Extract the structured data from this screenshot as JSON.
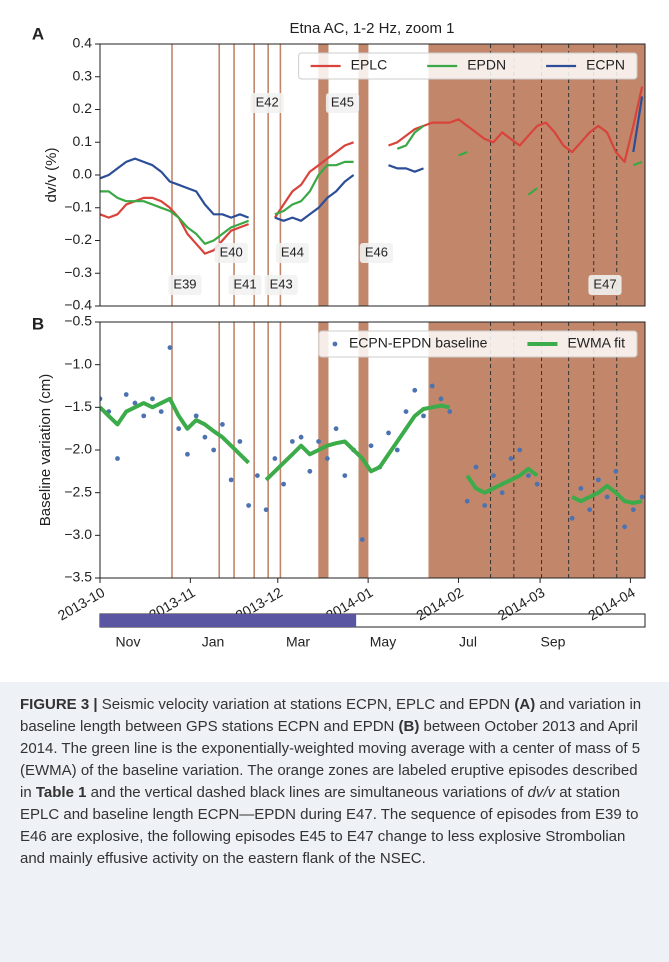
{
  "chart_data": [
    {
      "type": "line",
      "title": "Etna AC, 1-2 Hz, zoom 1",
      "panel_label": "A",
      "y_label": "dv/v (%)",
      "x": [
        0,
        3,
        6,
        9,
        12,
        15,
        18,
        21,
        24,
        27,
        30,
        33,
        36,
        39,
        42,
        45,
        48,
        51,
        54,
        57,
        60,
        63,
        66,
        69,
        72,
        75,
        78,
        81,
        84,
        87,
        90,
        93,
        96,
        99,
        102,
        105,
        108,
        111,
        114,
        117,
        120,
        123,
        126,
        129,
        132,
        135,
        138,
        141,
        144,
        147,
        150,
        153,
        156,
        159,
        162,
        165,
        168,
        171,
        174,
        177,
        180,
        183,
        186
      ],
      "xlim": [
        0,
        187
      ],
      "ylim": [
        -0.4,
        0.4
      ],
      "yticks": [
        0.4,
        0.3,
        0.2,
        0.1,
        {
          "value": 0,
          "label": "0.0"
        },
        {
          "value": -0.1,
          "label": "−0.1"
        },
        {
          "value": -0.2,
          "label": "−0.2"
        },
        {
          "value": -0.3,
          "label": "−0.3"
        },
        {
          "value": -0.4,
          "label": "−0.4"
        }
      ],
      "legend": "upper right",
      "series": [
        {
          "name": "EPLC",
          "color": "#d8433b",
          "mode": "line",
          "values": [
            -0.12,
            -0.13,
            -0.12,
            -0.09,
            -0.08,
            -0.07,
            -0.07,
            -0.08,
            -0.1,
            -0.13,
            -0.18,
            -0.21,
            -0.24,
            -0.23,
            -0.2,
            -0.17,
            -0.16,
            -0.15,
            null,
            null,
            -0.13,
            -0.09,
            -0.05,
            -0.03,
            0.01,
            0.03,
            0.05,
            0.07,
            0.09,
            0.1,
            null,
            null,
            null,
            0.09,
            0.1,
            0.12,
            0.14,
            0.15,
            0.16,
            0.16,
            0.16,
            0.17,
            0.15,
            0.13,
            0.11,
            0.1,
            0.13,
            0.11,
            0.09,
            0.12,
            0.15,
            0.16,
            0.13,
            0.09,
            0.07,
            0.1,
            0.13,
            0.15,
            0.13,
            0.07,
            0.04,
            0.15,
            0.27
          ]
        },
        {
          "name": "EPDN",
          "color": "#3aa845",
          "mode": "line",
          "values": [
            -0.05,
            -0.05,
            -0.07,
            -0.08,
            -0.08,
            -0.08,
            -0.09,
            -0.1,
            -0.11,
            -0.13,
            -0.16,
            -0.18,
            -0.21,
            -0.2,
            -0.18,
            -0.16,
            -0.15,
            -0.14,
            null,
            null,
            -0.12,
            -0.11,
            -0.09,
            -0.08,
            -0.05,
            0,
            0.03,
            0.03,
            0.04,
            0.04,
            null,
            null,
            null,
            null,
            0.08,
            0.09,
            0.13,
            0.15,
            null,
            null,
            null,
            0.06,
            0.07,
            null,
            null,
            null,
            null,
            null,
            null,
            -0.06,
            -0.04,
            null,
            null,
            null,
            null,
            null,
            null,
            null,
            null,
            null,
            null,
            0.03,
            0.04
          ]
        },
        {
          "name": "ECPN",
          "color": "#2c4e98",
          "mode": "line",
          "values": [
            -0.01,
            0,
            0.02,
            0.04,
            0.05,
            0.04,
            0.03,
            0.01,
            -0.02,
            -0.03,
            -0.04,
            -0.05,
            -0.09,
            -0.12,
            -0.12,
            -0.13,
            -0.12,
            -0.13,
            null,
            null,
            -0.13,
            -0.14,
            -0.13,
            -0.14,
            -0.12,
            -0.1,
            -0.07,
            -0.05,
            -0.02,
            0,
            null,
            null,
            null,
            0.03,
            0.02,
            0.02,
            0.01,
            0.02,
            null,
            null,
            null,
            null,
            null,
            null,
            null,
            null,
            null,
            null,
            null,
            null,
            null,
            null,
            null,
            null,
            null,
            null,
            null,
            null,
            null,
            null,
            null,
            0.07,
            0.24
          ]
        }
      ],
      "episode_color": "#c2876b",
      "episodes": [
        {
          "label": "E39",
          "x": 24.7
        },
        {
          "label": "E40",
          "x": 40.9
        },
        {
          "label": "E41",
          "x": 46
        },
        {
          "label": "E42",
          "x": 52.9
        },
        {
          "label": "E43",
          "x": 57.7
        },
        {
          "label": "E44",
          "x": 61.9
        },
        {
          "label": "E45",
          "xrange": [
            74.9,
            78.4
          ]
        },
        {
          "label": "E46",
          "xrange": [
            88.7,
            92.1
          ]
        },
        {
          "label": "E47",
          "xrange": [
            112.7,
            187
          ]
        }
      ],
      "dashed_lines": [
        134,
        142,
        151.5,
        160.8,
        169.4,
        177.3
      ]
    },
    {
      "type": "scatter",
      "panel_label": "B",
      "y_label": "Baseline variation (cm)",
      "x": [
        0,
        3,
        6,
        9,
        12,
        15,
        18,
        21,
        24,
        27,
        30,
        33,
        36,
        39,
        42,
        45,
        48,
        51,
        54,
        57,
        60,
        63,
        66,
        69,
        72,
        75,
        78,
        81,
        84,
        87,
        90,
        93,
        96,
        99,
        102,
        105,
        108,
        111,
        114,
        117,
        120,
        123,
        126,
        129,
        132,
        135,
        138,
        141,
        144,
        147,
        150,
        153,
        156,
        159,
        162,
        165,
        168,
        171,
        174,
        177,
        180,
        183,
        186
      ],
      "xlim": [
        0,
        187
      ],
      "ylim": [
        -3.5,
        -0.5
      ],
      "xticks": [
        {
          "value": 0,
          "label": "2013-10"
        },
        {
          "value": 31,
          "label": "2013-11"
        },
        {
          "value": 61,
          "label": "2013-12"
        },
        {
          "value": 92,
          "label": "2014-01"
        },
        {
          "value": 123,
          "label": "2014-02"
        },
        {
          "value": 151,
          "label": "2014-03"
        },
        {
          "value": 182,
          "label": "2014-04"
        }
      ],
      "yticks": [
        {
          "value": -0.5,
          "label": "−0.5"
        },
        {
          "value": -1,
          "label": "−1.0"
        },
        {
          "value": -1.5,
          "label": "−1.5"
        },
        {
          "value": -2,
          "label": "−2.0"
        },
        {
          "value": -2.5,
          "label": "−2.5"
        },
        {
          "value": -3,
          "label": "−3.0"
        },
        {
          "value": -3.5,
          "label": "−3.5"
        }
      ],
      "legend": "upper right",
      "series": [
        {
          "name": "ECPN-EPDN baseline",
          "color": "#4c72b0",
          "mode": "markers",
          "values": [
            -1.4,
            -1.55,
            -2.1,
            -1.35,
            -1.45,
            -1.6,
            -1.4,
            -1.55,
            -0.8,
            -1.75,
            -2.05,
            -1.6,
            -1.85,
            -2,
            -1.7,
            -2.35,
            -1.9,
            -2.65,
            -2.3,
            -2.7,
            -2.1,
            -2.4,
            -1.9,
            -1.85,
            -2.25,
            -1.9,
            -2.1,
            -1.75,
            -2.3,
            -2,
            -3.05,
            -1.95,
            -2.2,
            -1.8,
            -2,
            -1.55,
            -1.3,
            -1.6,
            -1.25,
            -1.4,
            -1.55,
            null,
            -2.6,
            -2.2,
            -2.65,
            -2.3,
            -2.5,
            -2.1,
            -2,
            -2.3,
            -2.4,
            null,
            null,
            null,
            -2.8,
            -2.45,
            -2.7,
            -2.35,
            -2.55,
            -2.25,
            -2.9,
            -2.7,
            -2.55
          ]
        },
        {
          "name": "EWMA fit",
          "color": "#3cab4a",
          "mode": "line",
          "values": [
            -1.5,
            -1.6,
            -1.7,
            -1.55,
            -1.5,
            -1.45,
            -1.5,
            -1.45,
            -1.4,
            -1.6,
            -1.75,
            -1.65,
            -1.7,
            -1.78,
            -1.85,
            -1.95,
            -2.05,
            -2.15,
            null,
            -2.35,
            -2.25,
            -2.15,
            -2.05,
            -1.95,
            -2.05,
            -2,
            -1.95,
            -1.92,
            -1.9,
            -2,
            -2.1,
            -2.25,
            -2.2,
            -2.05,
            -1.9,
            -1.75,
            -1.6,
            -1.52,
            -1.5,
            -1.48,
            -1.5,
            null,
            -2.3,
            -2.45,
            -2.5,
            -2.45,
            -2.4,
            -2.35,
            -2.3,
            -2.22,
            -2.3,
            null,
            null,
            null,
            -2.55,
            -2.6,
            -2.55,
            -2.5,
            -2.42,
            -2.5,
            -2.6,
            -2.62,
            -2.6
          ]
        }
      ]
    }
  ],
  "timeline": {
    "labels": [
      "Nov",
      "Jan",
      "Mar",
      "May",
      "Jul",
      "Sep"
    ],
    "fill": 0.47,
    "color": "#5b56a2"
  },
  "caption": [
    {
      "text": "FIGURE 3 |",
      "style": "bold"
    },
    {
      "text": " Seismic velocity variation at stations ECPN, EPLC and EPDN "
    },
    {
      "text": "(A)",
      "style": "bold"
    },
    {
      "text": " and variation in baseline length between GPS stations ECPN and EPDN "
    },
    {
      "text": "(B)",
      "style": "bold"
    },
    {
      "text": " between October 2013 and April 2014. The green line is the exponentially-weighted moving average with a center of mass of 5 (EWMA) of the baseline variation. The orange zones are labeled eruptive episodes described in "
    },
    {
      "text": "Table 1",
      "style": "bold"
    },
    {
      "text": " and the vertical dashed black lines are simultaneous variations of "
    },
    {
      "text": "dv/v",
      "style": "italic"
    },
    {
      "text": " at station EPLC and baseline length ECPN—EPDN during E47. The sequence of episodes from E39 to E46 are explosive, the following episodes E45 to E47 change to less explosive Strombolian and mainly effusive activity on the eastern flank of the NSEC."
    }
  ]
}
